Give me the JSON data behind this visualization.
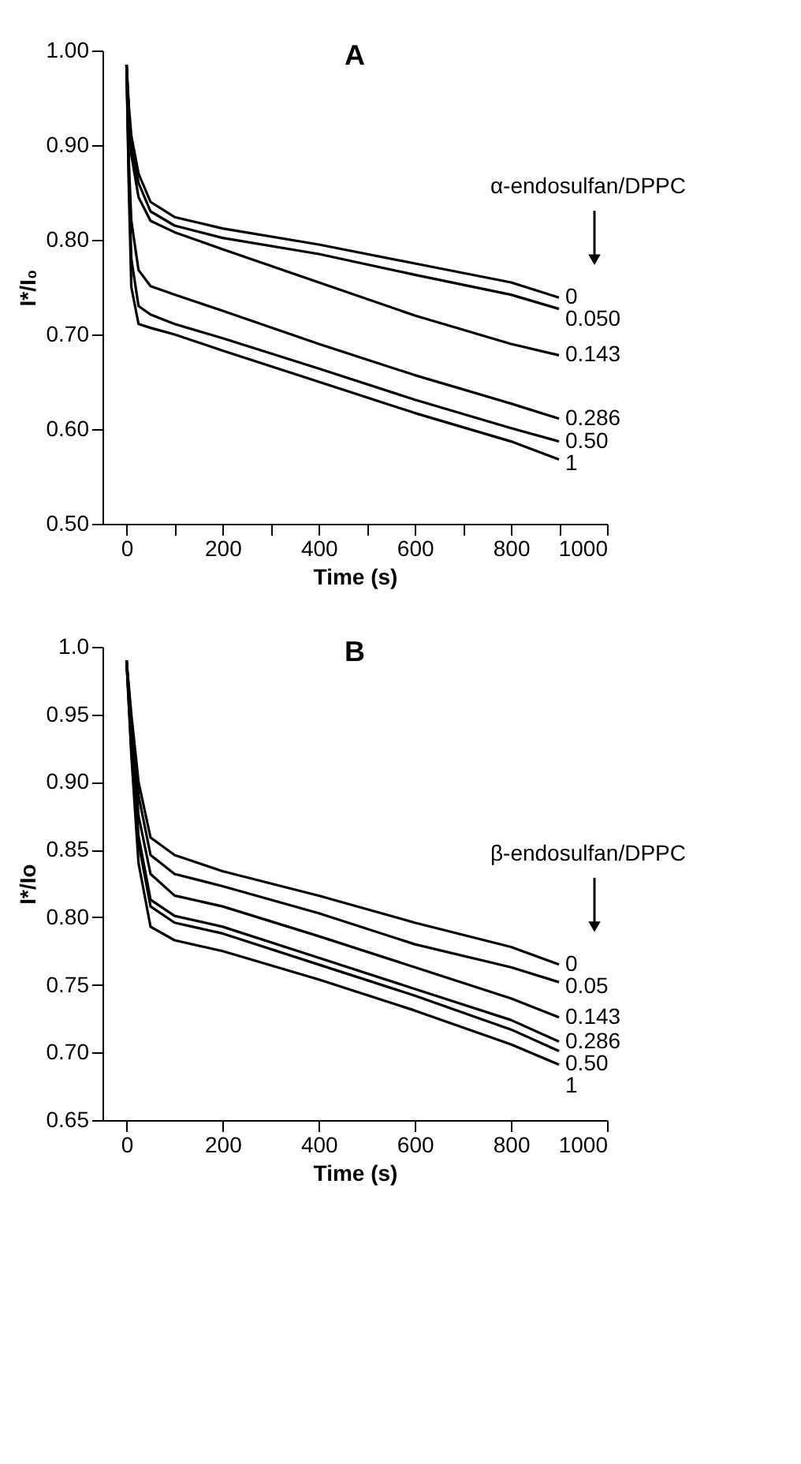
{
  "chart_data": [
    {
      "type": "line",
      "title": "A",
      "xlabel": "Time (s)",
      "ylabel": "I*/I₀",
      "legend_title": "α-endosulfan/DPPC",
      "x": [
        0,
        5,
        10,
        25,
        50,
        100,
        200,
        400,
        600,
        800,
        900
      ],
      "series": [
        {
          "name": "0",
          "color": "#000000",
          "values": [
            0.985,
            0.94,
            0.91,
            0.87,
            0.84,
            0.824,
            0.812,
            0.795,
            0.775,
            0.755,
            0.739
          ]
        },
        {
          "name": "0.050",
          "color": "#000000",
          "values": [
            0.985,
            0.935,
            0.9,
            0.86,
            0.83,
            0.815,
            0.802,
            0.785,
            0.763,
            0.742,
            0.727
          ]
        },
        {
          "name": "0.143",
          "color": "#000000",
          "values": [
            0.985,
            0.93,
            0.89,
            0.845,
            0.82,
            0.808,
            0.79,
            0.755,
            0.72,
            0.69,
            0.678
          ]
        },
        {
          "name": "0.286",
          "color": "#000000",
          "values": [
            0.985,
            0.88,
            0.82,
            0.768,
            0.751,
            0.742,
            0.725,
            0.69,
            0.657,
            0.627,
            0.611
          ]
        },
        {
          "name": "0.50",
          "color": "#000000",
          "values": [
            0.985,
            0.86,
            0.78,
            0.73,
            0.721,
            0.711,
            0.696,
            0.664,
            0.631,
            0.601,
            0.587
          ]
        },
        {
          "name": "1",
          "color": "#000000",
          "values": [
            0.985,
            0.85,
            0.75,
            0.711,
            0.707,
            0.7,
            0.683,
            0.65,
            0.617,
            0.587,
            0.568
          ]
        }
      ],
      "xlim": [
        -50,
        1000
      ],
      "xticks": [
        0,
        {
          "value": 100,
          "label": null
        },
        200,
        {
          "value": 300,
          "label": null
        },
        400,
        {
          "value": 500,
          "label": null
        },
        600,
        {
          "value": 700,
          "label": null
        },
        800,
        {
          "value": 900,
          "label": null
        },
        1000
      ],
      "ylim": [
        0.5,
        1.0
      ],
      "yticks": [
        {
          "value": 0.5,
          "label": "0.50"
        },
        {
          "value": 0.6,
          "label": "0.60"
        },
        {
          "value": 0.7,
          "label": "0.70"
        },
        {
          "value": 0.8,
          "label": "0.80"
        },
        {
          "value": 0.9,
          "label": "0.90"
        },
        {
          "value": 1.0,
          "label": "1.00"
        }
      ],
      "grid": false,
      "marker": "none",
      "line_style": "solid"
    },
    {
      "type": "line",
      "title": "B",
      "xlabel": "Time (s)",
      "ylabel": "I*/Io",
      "legend_title": "β-endosulfan/DPPC",
      "x": [
        0,
        10,
        25,
        50,
        100,
        200,
        400,
        600,
        800,
        900
      ],
      "series": [
        {
          "name": "0",
          "color": "#000000",
          "values": [
            0.99,
            0.95,
            0.9,
            0.859,
            0.846,
            0.834,
            0.816,
            0.796,
            0.778,
            0.765
          ]
        },
        {
          "name": "0.05",
          "color": "#000000",
          "values": [
            0.99,
            0.945,
            0.89,
            0.846,
            0.832,
            0.823,
            0.803,
            0.78,
            0.763,
            0.752
          ]
        },
        {
          "name": "0.143",
          "color": "#000000",
          "values": [
            0.99,
            0.94,
            0.875,
            0.832,
            0.816,
            0.808,
            0.786,
            0.763,
            0.74,
            0.726
          ]
        },
        {
          "name": "0.286",
          "color": "#000000",
          "values": [
            0.99,
            0.93,
            0.86,
            0.813,
            0.801,
            0.793,
            0.77,
            0.747,
            0.724,
            0.708
          ]
        },
        {
          "name": "0.50",
          "color": "#000000",
          "values": [
            0.99,
            0.925,
            0.855,
            0.808,
            0.796,
            0.788,
            0.765,
            0.742,
            0.717,
            0.701
          ]
        },
        {
          "name": "1",
          "color": "#000000",
          "values": [
            0.99,
            0.92,
            0.84,
            0.793,
            0.783,
            0.775,
            0.754,
            0.731,
            0.706,
            0.691
          ]
        }
      ],
      "xlim": [
        -50,
        1000
      ],
      "xticks": [
        0,
        200,
        400,
        600,
        800,
        1000
      ],
      "ylim": [
        0.65,
        1.0
      ],
      "yticks": [
        {
          "value": 0.65,
          "label": "0.65"
        },
        {
          "value": 0.7,
          "label": "0.70"
        },
        {
          "value": 0.75,
          "label": "0.75"
        },
        {
          "value": 0.8,
          "label": "0.80"
        },
        {
          "value": 0.85,
          "label": "0.85"
        },
        {
          "value": 0.9,
          "label": "0.90"
        },
        {
          "value": 0.95,
          "label": "0.95"
        },
        {
          "value": 1.0,
          "label": "1.0"
        }
      ],
      "grid": false,
      "marker": "none",
      "line_style": "solid"
    }
  ]
}
